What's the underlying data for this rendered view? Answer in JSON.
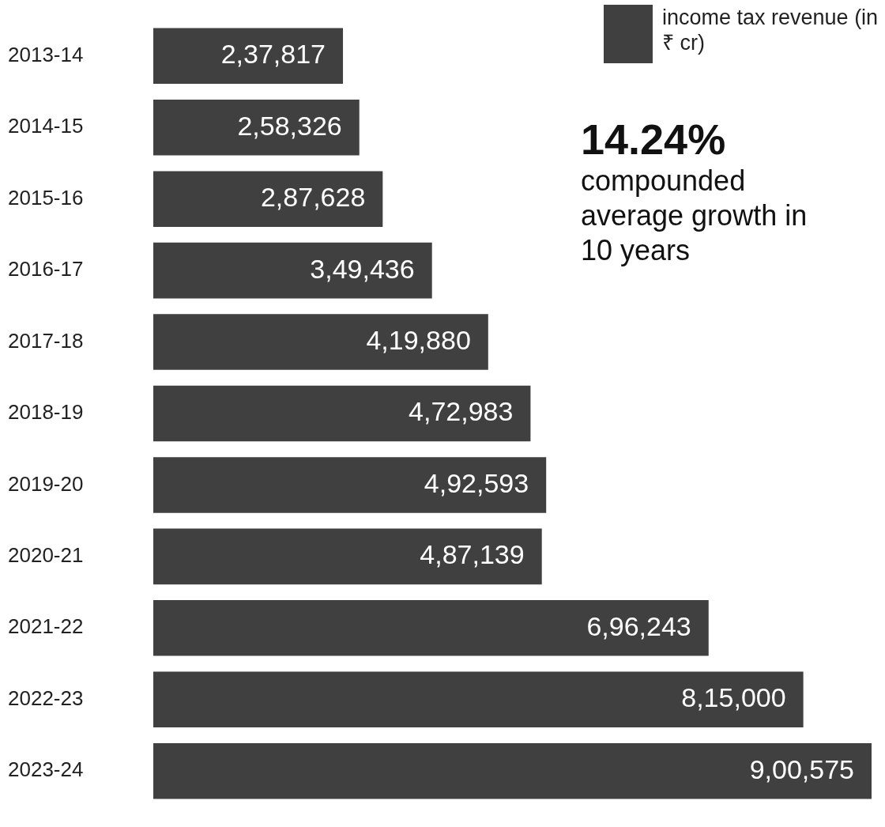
{
  "chart_data": {
    "type": "bar",
    "orientation": "horizontal",
    "categories": [
      "2013-14",
      "2014-15",
      "2015-16",
      "2016-17",
      "2017-18",
      "2018-19",
      "2019-20",
      "2020-21",
      "2021-22",
      "2022-23",
      "2023-24"
    ],
    "series": [
      {
        "name": "income tax revenue (in ₹ cr)",
        "color": "#404040",
        "values": [
          237817,
          258326,
          287628,
          349436,
          419880,
          472983,
          492593,
          487139,
          696243,
          815000,
          900575
        ],
        "value_labels": [
          "2,37,817",
          "2,58,326",
          "2,87,628",
          "3,49,436",
          "4,19,880",
          "4,72,983",
          "4,92,593",
          "4,87,139",
          "6,96,243",
          "8,15,000",
          "9,00,575"
        ]
      }
    ],
    "xlim": [
      0,
      900575
    ],
    "tick_labels": "y",
    "legend": "top right",
    "annotations": [
      "14.24%",
      "compounded average growth in 10 years"
    ]
  }
}
